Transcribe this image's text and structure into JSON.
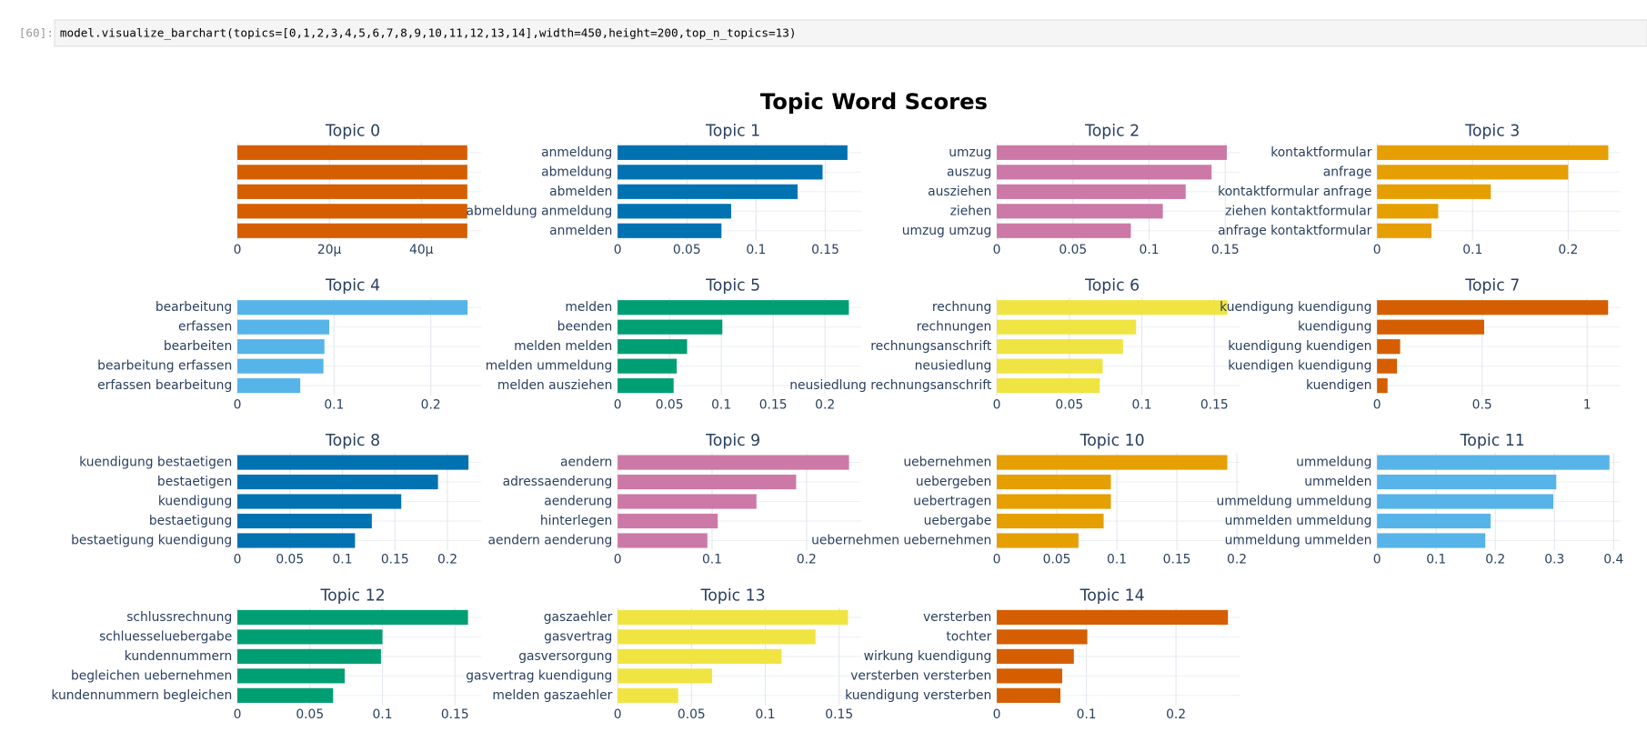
{
  "cell": {
    "prompt": "[60]:",
    "code": "model.visualize_barchart(topics=[0,1,2,3,4,5,6,7,8,9,10,11,12,13,14],width=450,height=200,top_n_topics=13)"
  },
  "title": "Topic Word Scores",
  "chart_data": [
    {
      "type": "bar",
      "title": "Topic 0",
      "categories": [
        null,
        null,
        null,
        null,
        null
      ],
      "values": [
        5e-05,
        5e-05,
        5e-05,
        5e-05,
        5e-05
      ],
      "color": "#D55E00",
      "xlim": [
        0,
        5.3e-05
      ],
      "xticks": [
        0,
        {
          "value": 2e-05,
          "label": "20μ"
        },
        {
          "value": 4e-05,
          "label": "40μ"
        }
      ],
      "grid": true
    },
    {
      "type": "bar",
      "title": "Topic 1",
      "categories": [
        "anmeldung",
        "abmeldung",
        "abmelden",
        "abmeldung anmeldung",
        "anmelden"
      ],
      "values": [
        0.166,
        0.148,
        0.13,
        0.082,
        0.075
      ],
      "color": "#0072B2",
      "xlim": [
        0,
        0.176
      ],
      "xticks": [
        0,
        0.05,
        0.1,
        0.15
      ],
      "grid": true
    },
    {
      "type": "bar",
      "title": "Topic 2",
      "categories": [
        "umzug",
        "auszug",
        "ausziehen",
        "ziehen",
        "umzug umzug"
      ],
      "values": [
        0.151,
        0.141,
        0.124,
        0.109,
        0.088
      ],
      "color": "#CC79A7",
      "xlim": [
        0,
        0.16
      ],
      "xticks": [
        0,
        0.05,
        0.1,
        0.15
      ],
      "grid": true
    },
    {
      "type": "bar",
      "title": "Topic 3",
      "categories": [
        "kontaktformular",
        "anfrage",
        "kontaktformular anfrage",
        "ziehen kontaktformular",
        "anfrage kontaktformular"
      ],
      "values": [
        0.242,
        0.2,
        0.119,
        0.064,
        0.057
      ],
      "color": "#E69F00",
      "xlim": [
        0,
        0.255
      ],
      "xticks": [
        0,
        0.1,
        0.2
      ],
      "grid": true
    },
    {
      "type": "bar",
      "title": "Topic 4",
      "categories": [
        "bearbeitung",
        "erfassen",
        "bearbeiten",
        "bearbeitung erfassen",
        "erfassen bearbeitung"
      ],
      "values": [
        0.238,
        0.095,
        0.09,
        0.089,
        0.065
      ],
      "color": "#56B4E9",
      "xlim": [
        0,
        0.252
      ],
      "xticks": [
        0,
        0.1,
        0.2
      ],
      "grid": true
    },
    {
      "type": "bar",
      "title": "Topic 5",
      "categories": [
        "melden",
        "beenden",
        "melden melden",
        "melden ummeldung",
        "melden ausziehen"
      ],
      "values": [
        0.223,
        0.101,
        0.067,
        0.057,
        0.054
      ],
      "color": "#009E73",
      "xlim": [
        0,
        0.235
      ],
      "xticks": [
        0,
        0.05,
        0.1,
        0.15,
        0.2
      ],
      "grid": true
    },
    {
      "type": "bar",
      "title": "Topic 6",
      "categories": [
        "rechnung",
        "rechnungen",
        "rechnungsanschrift",
        "neusiedlung",
        "neusiedlung rechnungsanschrift"
      ],
      "values": [
        0.159,
        0.096,
        0.087,
        0.073,
        0.071
      ],
      "color": "#F0E442",
      "xlim": [
        0,
        0.168
      ],
      "xticks": [
        0,
        0.05,
        0.1,
        0.15
      ],
      "grid": true
    },
    {
      "type": "bar",
      "title": "Topic 7",
      "categories": [
        "kuendigung kuendigung",
        "kuendigung",
        "kuendigung kuendigen",
        "kuendigen kuendigung",
        "kuendigen"
      ],
      "values": [
        1.1,
        0.51,
        0.11,
        0.095,
        0.05
      ],
      "color": "#D55E00",
      "xlim": [
        0,
        1.16
      ],
      "xticks": [
        0,
        0.5,
        1
      ],
      "grid": true
    },
    {
      "type": "bar",
      "title": "Topic 8",
      "categories": [
        "kuendigung bestaetigen",
        "bestaetigen",
        "kuendigung",
        "bestaetigung",
        "bestaetigung kuendigung"
      ],
      "values": [
        0.22,
        0.191,
        0.156,
        0.128,
        0.112
      ],
      "color": "#0072B2",
      "xlim": [
        0,
        0.232
      ],
      "xticks": [
        0,
        0.05,
        0.1,
        0.15,
        0.2
      ],
      "grid": true
    },
    {
      "type": "bar",
      "title": "Topic 9",
      "categories": [
        "aendern",
        "adressaenderung",
        "aenderung",
        "hinterlegen",
        "aendern aenderung"
      ],
      "values": [
        0.245,
        0.189,
        0.147,
        0.106,
        0.095
      ],
      "color": "#CC79A7",
      "xlim": [
        0,
        0.258
      ],
      "xticks": [
        0,
        0.1,
        0.2
      ],
      "grid": true
    },
    {
      "type": "bar",
      "title": "Topic 10",
      "categories": [
        "uebernehmen",
        "uebergeben",
        "uebertragen",
        "uebergabe",
        "uebernehmen uebernehmen"
      ],
      "values": [
        0.192,
        0.095,
        0.095,
        0.089,
        0.068
      ],
      "color": "#E69F00",
      "xlim": [
        0,
        0.203
      ],
      "xticks": [
        0,
        0.05,
        0.1,
        0.15,
        0.2
      ],
      "grid": true
    },
    {
      "type": "bar",
      "title": "Topic 11",
      "categories": [
        "ummeldung",
        "ummelden",
        "ummeldung ummeldung",
        "ummelden ummeldung",
        "ummeldung ummelden"
      ],
      "values": [
        0.393,
        0.303,
        0.298,
        0.192,
        0.183
      ],
      "color": "#56B4E9",
      "xlim": [
        0,
        0.412
      ],
      "xticks": [
        0,
        0.1,
        0.2,
        0.3,
        0.4
      ],
      "grid": true
    },
    {
      "type": "bar",
      "title": "Topic 12",
      "categories": [
        "schlussrechnung",
        "schluesseluebergabe",
        "kundennummern",
        "begleichen uebernehmen",
        "kundennummern begleichen"
      ],
      "values": [
        0.159,
        0.1,
        0.099,
        0.074,
        0.066
      ],
      "color": "#009E73",
      "xlim": [
        0,
        0.168
      ],
      "xticks": [
        0,
        0.05,
        0.1,
        0.15
      ],
      "grid": true
    },
    {
      "type": "bar",
      "title": "Topic 13",
      "categories": [
        "gaszaehler",
        "gasvertrag",
        "gasversorgung",
        "gasvertrag kuendigung",
        "melden gaszaehler"
      ],
      "values": [
        0.156,
        0.134,
        0.111,
        0.064,
        0.041
      ],
      "color": "#F0E442",
      "xlim": [
        0,
        0.165
      ],
      "xticks": [
        0,
        0.05,
        0.1,
        0.15
      ],
      "grid": true
    },
    {
      "type": "bar",
      "title": "Topic 14",
      "categories": [
        "versterben",
        "tochter",
        "wirkung kuendigung",
        "versterben versterben",
        "kuendigung versterben"
      ],
      "values": [
        0.258,
        0.101,
        0.086,
        0.073,
        0.071
      ],
      "color": "#D55E00",
      "xlim": [
        0,
        0.272
      ],
      "xticks": [
        0,
        0.1,
        0.2
      ],
      "grid": true
    }
  ]
}
